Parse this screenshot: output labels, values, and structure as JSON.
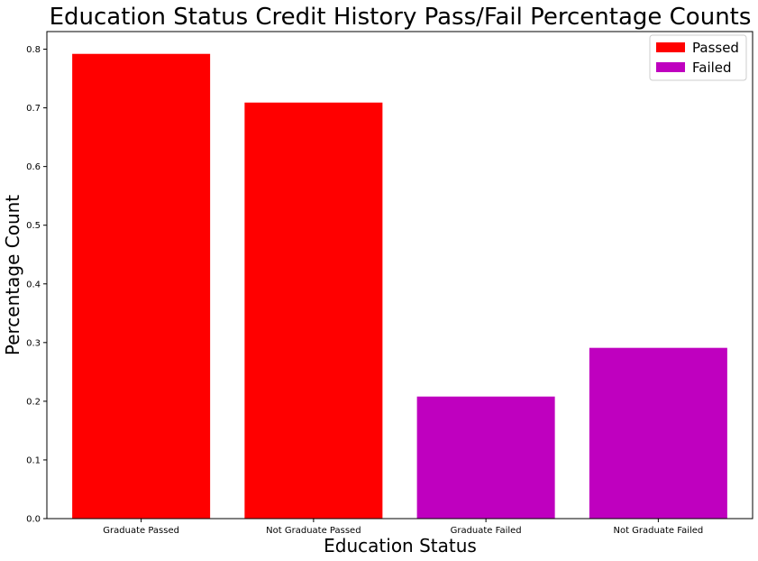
{
  "chart_data": {
    "type": "bar",
    "title": "Education Status Credit History Pass/Fail Percentage Counts",
    "xlabel": "Education Status",
    "ylabel": "Percentage Count",
    "ylim": [
      0,
      0.83
    ],
    "yticks": [
      "0.0",
      "0.1",
      "0.2",
      "0.3",
      "0.4",
      "0.5",
      "0.6",
      "0.7",
      "0.8"
    ],
    "categories": [
      "Graduate Passed",
      "Not Graduate Passed",
      "Graduate Failed",
      "Not Graduate Failed"
    ],
    "values": [
      0.792,
      0.709,
      0.208,
      0.291
    ],
    "bar_series": [
      "Passed",
      "Passed",
      "Failed",
      "Failed"
    ],
    "legend": {
      "position": "top-right",
      "entries": [
        {
          "name": "Passed",
          "color": "#ff0000"
        },
        {
          "name": "Failed",
          "color": "#bf00bf"
        }
      ]
    },
    "grid": false
  }
}
